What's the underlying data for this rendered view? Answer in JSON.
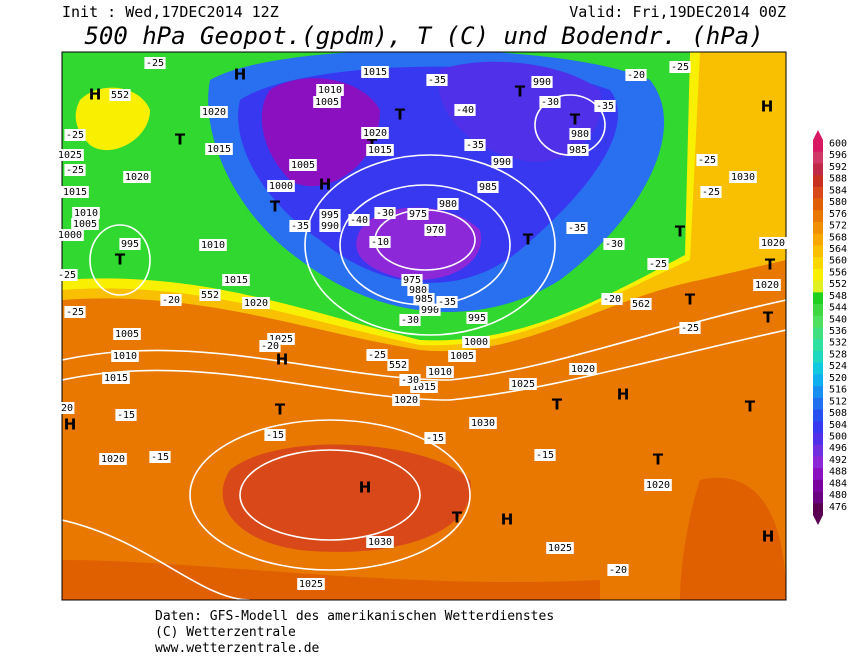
{
  "header": {
    "init": "Init : Wed,17DEC2014 12Z",
    "valid": "Valid: Fri,19DEC2014 00Z",
    "title": "500 hPa Geopot.(gpdm), T (C) und Bodendr. (hPa)"
  },
  "colorbar": {
    "levels": [
      600,
      596,
      592,
      588,
      584,
      580,
      576,
      572,
      568,
      564,
      560,
      556,
      552,
      548,
      544,
      540,
      536,
      532,
      528,
      524,
      520,
      516,
      512,
      508,
      504,
      500,
      496,
      492,
      488,
      484,
      480,
      476
    ],
    "colors": [
      "#d81860",
      "#d03868",
      "#c02848",
      "#c83020",
      "#d84818",
      "#e06000",
      "#e87800",
      "#f09000",
      "#f8a800",
      "#f8c000",
      "#f8d800",
      "#f8f000",
      "#e0f020",
      "#20d020",
      "#40d840",
      "#50e060",
      "#40e080",
      "#30e0a0",
      "#20d8c0",
      "#10c8e0",
      "#10b0f0",
      "#1890f0",
      "#2070f0",
      "#2850f0",
      "#3838f0",
      "#5030e8",
      "#7030e0",
      "#8c28d8",
      "#8a10c0",
      "#7a00a0",
      "#6a0080",
      "#5a0050"
    ]
  },
  "map_labels": [
    "H",
    "H",
    "T",
    "T",
    "T",
    "T",
    "T",
    "H",
    "H",
    "T",
    "T",
    "T",
    "T",
    "T",
    "T",
    "T",
    "T",
    "H",
    "T",
    "H",
    "T",
    "H",
    "T",
    "T",
    "H",
    "T",
    "H",
    "H",
    "1015",
    "1010",
    "1005",
    "1015",
    "1020",
    "990",
    "980",
    "985",
    "990",
    "985",
    "980",
    "975",
    "970",
    "995",
    "990",
    "1005",
    "1000",
    "1020",
    "1015",
    "1025",
    "1020",
    "1015",
    "1010",
    "1005",
    "1000",
    "995",
    "1010",
    "1015",
    "1020",
    "1005",
    "1010",
    "1015",
    "1025",
    "1000",
    "1005",
    "1010",
    "1015",
    "1020",
    "1025",
    "1030",
    "1020",
    "1020",
    "1020",
    "1030",
    "1020",
    "1030",
    "1025",
    "1025",
    "1020",
    "975",
    "980",
    "985",
    "990",
    "995",
    "-25",
    "-25",
    "-20",
    "-35",
    "-40",
    "-35",
    "-30",
    "-35",
    "-25",
    "-25",
    "-30",
    "-40",
    "-35",
    "-10",
    "-25",
    "-30",
    "-35",
    "-20",
    "-25",
    "-20",
    "-25",
    "-25",
    "-20",
    "-25",
    "-30",
    "-35",
    "-15",
    "-15",
    "-15",
    "-15",
    "-15",
    "-20",
    "-25",
    "-25",
    "20",
    "-30",
    "552",
    "552",
    "562",
    "552"
  ],
  "footer": {
    "line1": "Daten: GFS-Modell des amerikanischen Wetterdienstes",
    "line2": "(C) Wetterzentrale",
    "line3": "www.wetterzentrale.de"
  }
}
